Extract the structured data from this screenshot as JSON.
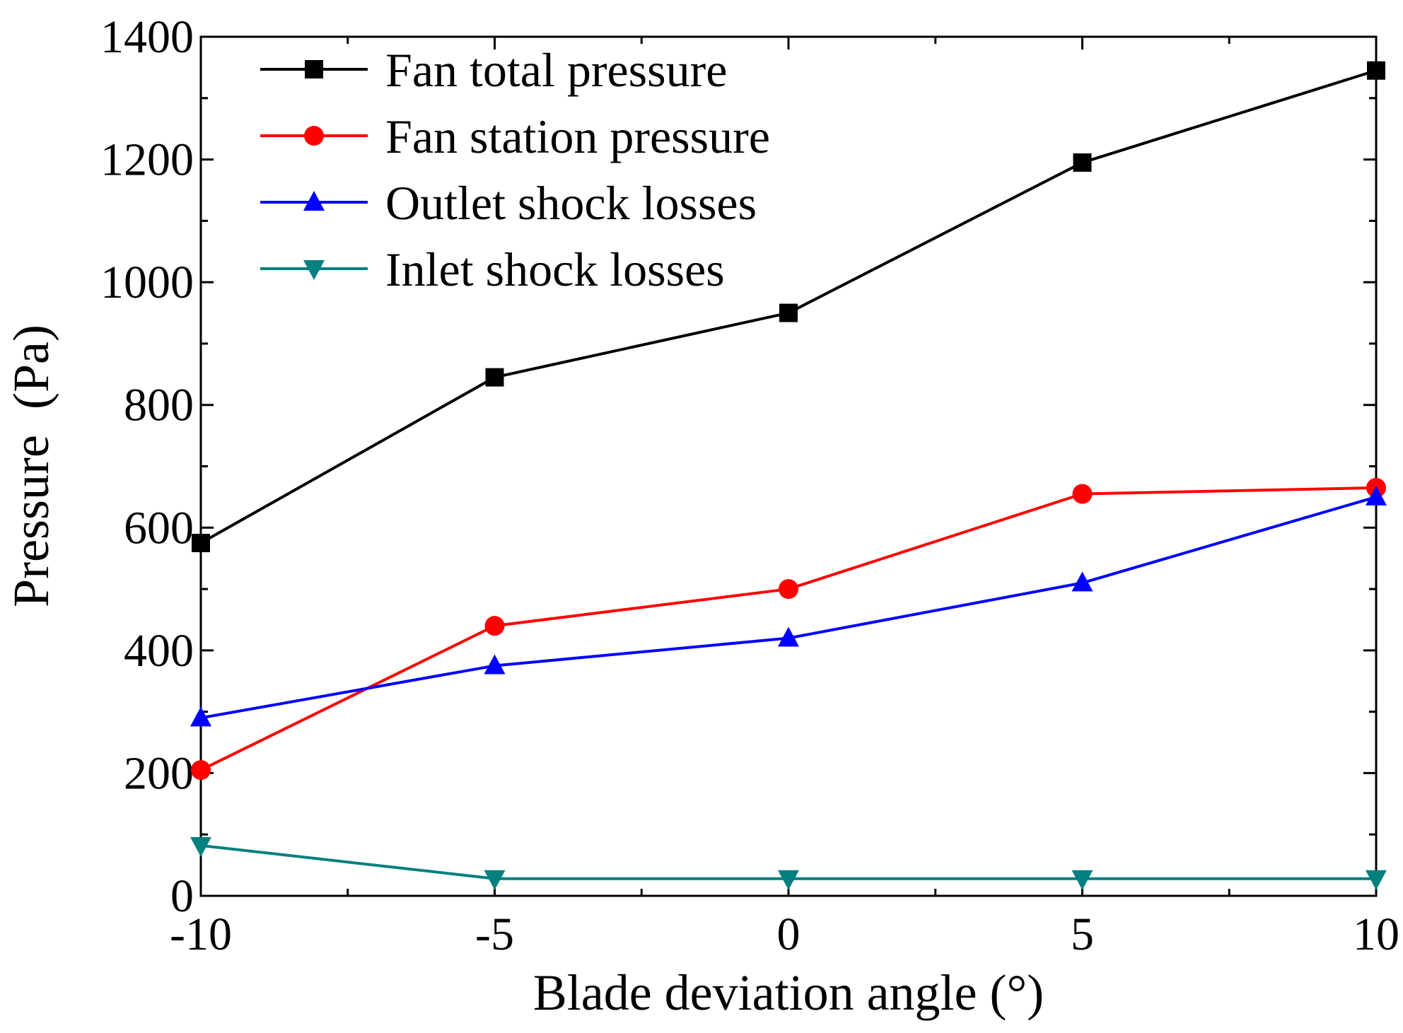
{
  "chart_data": {
    "type": "line",
    "title": "",
    "xlabel": "Blade deviation angle (°)",
    "ylabel": "Pressure  (Pa)",
    "xlim": [
      -10,
      10
    ],
    "ylim": [
      0,
      1400
    ],
    "xticks": [
      -10,
      -5,
      0,
      5,
      10
    ],
    "xtick_labels": [
      "-10",
      "-5",
      "0",
      "5",
      "10"
    ],
    "yticks": [
      0,
      200,
      400,
      600,
      800,
      1000,
      1200,
      1400
    ],
    "ytick_labels": [
      "0",
      "200",
      "400",
      "600",
      "800",
      "1000",
      "1200",
      "1400"
    ],
    "grid": false,
    "legend_position": "top-left",
    "x": [
      -10,
      -5,
      0,
      5,
      10
    ],
    "series": [
      {
        "name": "Fan total pressure",
        "color": "#000000",
        "marker": "square",
        "values": [
          575,
          845,
          950,
          1195,
          1345
        ]
      },
      {
        "name": "Fan station pressure",
        "color": "#ff0000",
        "marker": "circle",
        "values": [
          205,
          440,
          500,
          655,
          665
        ]
      },
      {
        "name": "Outlet shock losses",
        "color": "#0000ff",
        "marker": "triangle-up",
        "values": [
          290,
          375,
          420,
          510,
          650
        ]
      },
      {
        "name": "Inlet shock losses",
        "color": "#008080",
        "marker": "triangle-down",
        "values": [
          82,
          28,
          28,
          28,
          28
        ]
      }
    ]
  }
}
